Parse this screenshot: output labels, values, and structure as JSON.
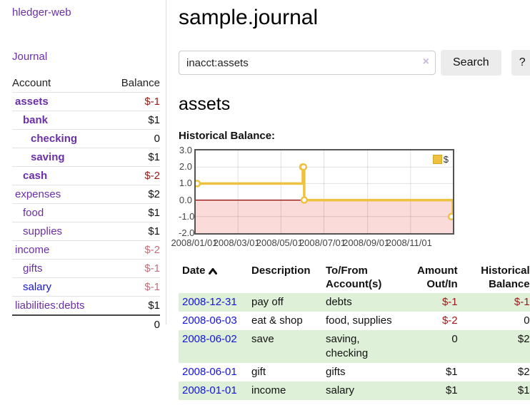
{
  "app": {
    "title": "hledger-web",
    "nav_journal": "Journal"
  },
  "colors": {
    "purple": "#6b2fa8",
    "blue": "#1414dd",
    "neg": "#9e1616",
    "neg_muted": "#c36f7b",
    "row_green": "#dff0d8",
    "series": "#edc240",
    "pink": "#fbdada",
    "zero": "#8b0000"
  },
  "sidebar": {
    "header": {
      "account": "Account",
      "balance": "Balance"
    },
    "accounts": [
      {
        "name": "assets",
        "balance": "$-1",
        "indent": 1,
        "bold": true,
        "amount_class": "neg",
        "link": "purple"
      },
      {
        "name": "bank",
        "balance": "$1",
        "indent": 2,
        "bold": true,
        "amount_class": "pos",
        "link": "purple"
      },
      {
        "name": "checking",
        "balance": "0",
        "indent": 3,
        "bold": true,
        "amount_class": "pos",
        "link": "purple"
      },
      {
        "name": "saving",
        "balance": "$1",
        "indent": 3,
        "bold": true,
        "amount_class": "pos",
        "link": "purple"
      },
      {
        "name": "cash",
        "balance": "$-2",
        "indent": 2,
        "bold": true,
        "amount_class": "neg",
        "link": "purple"
      },
      {
        "name": "expenses",
        "balance": "$2",
        "indent": 1,
        "bold": false,
        "amount_class": "pos",
        "link": "purple"
      },
      {
        "name": "food",
        "balance": "$1",
        "indent": 2,
        "bold": false,
        "amount_class": "pos",
        "link": "purple"
      },
      {
        "name": "supplies",
        "balance": "$1",
        "indent": 2,
        "bold": false,
        "amount_class": "pos",
        "link": "purple"
      },
      {
        "name": "income",
        "balance": "$-2",
        "indent": 1,
        "bold": false,
        "amount_class": "neg-muted",
        "link": "purple"
      },
      {
        "name": "gifts",
        "balance": "$-1",
        "indent": 2,
        "bold": false,
        "amount_class": "neg-muted",
        "link": "purple"
      },
      {
        "name": "salary",
        "balance": "$-1",
        "indent": 2,
        "bold": false,
        "amount_class": "neg-muted",
        "link": "blue"
      },
      {
        "name": "liabilities:debts",
        "balance": "$1",
        "indent": 1,
        "bold": false,
        "amount_class": "pos",
        "link": "purple"
      }
    ],
    "total": "0"
  },
  "header": {
    "title": "sample.journal"
  },
  "search": {
    "value": "inacct:assets",
    "clear_label": "×",
    "button_label": "Search",
    "help_label": "?"
  },
  "account_page": {
    "heading": "assets",
    "chart_label": "Historical Balance:"
  },
  "chart_data": {
    "type": "line",
    "title": "Historical Balance:",
    "series": [
      {
        "name": "$",
        "color": "#edc240",
        "step": true,
        "points": [
          [
            "2008-01-01",
            1
          ],
          [
            "2008-06-01",
            2
          ],
          [
            "2008-06-02",
            2
          ],
          [
            "2008-06-03",
            0
          ],
          [
            "2008-12-31",
            -1
          ]
        ]
      }
    ],
    "x_range": [
      "2008-01-01",
      "2008-12-31"
    ],
    "x_ticks": [
      "2008/01/01",
      "2008/03/01",
      "2008/05/01",
      "2008/07/01",
      "2008/09/01",
      "2008/11/01"
    ],
    "y_ticks": [
      3,
      2,
      1,
      0,
      -1,
      -2
    ],
    "y_tick_labels": [
      "3.0",
      "2.0",
      "1.0",
      "0.0",
      "-1.0",
      "-2.0"
    ],
    "ylim": [
      -2,
      3
    ],
    "grid": true,
    "legend": "$",
    "legend_position": "top-right",
    "negative_region_color": "#fbdada",
    "zero_line_color": "#8b0000"
  },
  "register": {
    "columns": [
      {
        "lines": [
          "Date"
        ],
        "sort": "asc"
      },
      {
        "lines": [
          "Description"
        ]
      },
      {
        "lines": [
          "To/From",
          "Account(s)"
        ]
      },
      {
        "lines": [
          "Amount",
          "Out/In"
        ]
      },
      {
        "lines": [
          "Historical",
          "Balance"
        ]
      }
    ],
    "rows": [
      {
        "date": "2008-12-31",
        "description": "pay off",
        "accounts_lines": [
          "debts"
        ],
        "amount": "$-1",
        "amount_neg": true,
        "balance": "$-1",
        "balance_neg": true,
        "shaded": true
      },
      {
        "date": "2008-06-03",
        "description": "eat & shop",
        "accounts_lines": [
          "food, supplies"
        ],
        "amount": "$-2",
        "amount_neg": true,
        "balance": "0",
        "balance_neg": false,
        "shaded": false
      },
      {
        "date": "2008-06-02",
        "description": "save",
        "accounts_lines": [
          "saving,",
          "checking"
        ],
        "amount": "0",
        "amount_neg": false,
        "balance": "$2",
        "balance_neg": false,
        "shaded": true
      },
      {
        "date": "2008-06-01",
        "description": "gift",
        "accounts_lines": [
          "gifts"
        ],
        "amount": "$1",
        "amount_neg": false,
        "balance": "$2",
        "balance_neg": false,
        "shaded": false
      },
      {
        "date": "2008-01-01",
        "description": "income",
        "accounts_lines": [
          "salary"
        ],
        "amount": "$1",
        "amount_neg": false,
        "balance": "$1",
        "balance_neg": false,
        "shaded": true
      }
    ]
  }
}
